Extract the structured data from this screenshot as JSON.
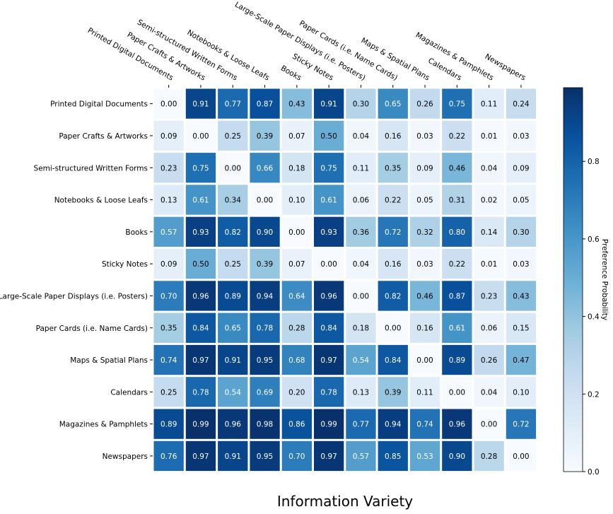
{
  "chart_data": {
    "type": "heatmap",
    "title": "Information Variety",
    "colorbar_label": "Preference Probability",
    "colorbar_ticks": [
      0.0,
      0.2,
      0.4,
      0.6,
      0.8
    ],
    "colorbar_tick_labels": [
      "0.0",
      "0.2",
      "0.4",
      "0.6",
      "0.8"
    ],
    "colorbar_range": [
      0.0,
      0.99
    ],
    "colormap": [
      "#f7fbff",
      "#deebf7",
      "#c6dbef",
      "#9ecae1",
      "#6baed6",
      "#4292c6",
      "#2171b5",
      "#08519c",
      "#08306b"
    ],
    "rows": [
      "Printed Digital Documents",
      "Paper Crafts & Artworks",
      "Semi-structured Written Forms",
      "Notebooks & Loose Leafs",
      "Books",
      "Sticky Notes",
      "Large-Scale Paper Displays (i.e. Posters)",
      "Paper Cards (i.e. Name Cards)",
      "Maps & Spatial Plans",
      "Calendars",
      "Magazines & Pamphlets",
      "Newspapers"
    ],
    "columns": [
      "Printed Digital Documents",
      "Paper Crafts & Artworks",
      "Semi-structured Written Forms",
      "Notebooks & Loose Leafs",
      "Books",
      "Sticky Notes",
      "Large-Scale Paper Displays (i.e. Posters)",
      "Paper Cards (i.e. Name Cards)",
      "Maps & Spatial Plans",
      "Calendars",
      "Magazines & Pamphlets",
      "Newspapers"
    ],
    "values": [
      [
        0.0,
        0.91,
        0.77,
        0.87,
        0.43,
        0.91,
        0.3,
        0.65,
        0.26,
        0.75,
        0.11,
        0.24
      ],
      [
        0.09,
        0.0,
        0.25,
        0.39,
        0.07,
        0.5,
        0.04,
        0.16,
        0.03,
        0.22,
        0.01,
        0.03
      ],
      [
        0.23,
        0.75,
        0.0,
        0.66,
        0.18,
        0.75,
        0.11,
        0.35,
        0.09,
        0.46,
        0.04,
        0.09
      ],
      [
        0.13,
        0.61,
        0.34,
        0.0,
        0.1,
        0.61,
        0.06,
        0.22,
        0.05,
        0.31,
        0.02,
        0.05
      ],
      [
        0.57,
        0.93,
        0.82,
        0.9,
        0.0,
        0.93,
        0.36,
        0.72,
        0.32,
        0.8,
        0.14,
        0.3
      ],
      [
        0.09,
        0.5,
        0.25,
        0.39,
        0.07,
        0.0,
        0.04,
        0.16,
        0.03,
        0.22,
        0.01,
        0.03
      ],
      [
        0.7,
        0.96,
        0.89,
        0.94,
        0.64,
        0.96,
        0.0,
        0.82,
        0.46,
        0.87,
        0.23,
        0.43
      ],
      [
        0.35,
        0.84,
        0.65,
        0.78,
        0.28,
        0.84,
        0.18,
        0.0,
        0.16,
        0.61,
        0.06,
        0.15
      ],
      [
        0.74,
        0.97,
        0.91,
        0.95,
        0.68,
        0.97,
        0.54,
        0.84,
        0.0,
        0.89,
        0.26,
        0.47
      ],
      [
        0.25,
        0.78,
        0.54,
        0.69,
        0.2,
        0.78,
        0.13,
        0.39,
        0.11,
        0.0,
        0.04,
        0.1
      ],
      [
        0.89,
        0.99,
        0.96,
        0.98,
        0.86,
        0.99,
        0.77,
        0.94,
        0.74,
        0.96,
        0.0,
        0.72
      ],
      [
        0.76,
        0.97,
        0.91,
        0.95,
        0.7,
        0.97,
        0.57,
        0.85,
        0.53,
        0.9,
        0.28,
        0.0
      ]
    ]
  }
}
